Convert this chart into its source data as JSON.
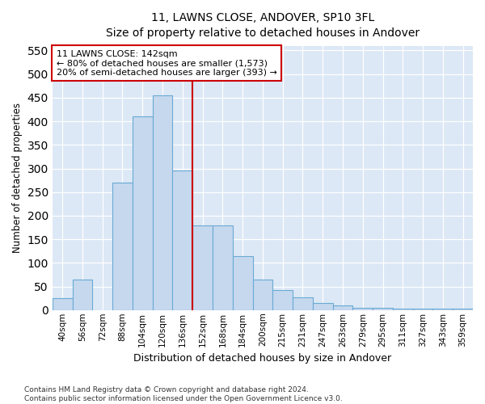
{
  "title": "11, LAWNS CLOSE, ANDOVER, SP10 3FL",
  "subtitle": "Size of property relative to detached houses in Andover",
  "xlabel": "Distribution of detached houses by size in Andover",
  "ylabel": "Number of detached properties",
  "categories": [
    "40sqm",
    "56sqm",
    "72sqm",
    "88sqm",
    "104sqm",
    "120sqm",
    "136sqm",
    "152sqm",
    "168sqm",
    "184sqm",
    "200sqm",
    "215sqm",
    "231sqm",
    "247sqm",
    "263sqm",
    "279sqm",
    "295sqm",
    "311sqm",
    "327sqm",
    "343sqm",
    "359sqm"
  ],
  "values": [
    25,
    65,
    0,
    270,
    410,
    455,
    295,
    180,
    180,
    115,
    65,
    43,
    27,
    15,
    10,
    5,
    5,
    3,
    3,
    3,
    3
  ],
  "bar_color": "#c5d8ee",
  "bar_edge_color": "#6aaad4",
  "vline_color": "#cc0000",
  "annotation_text": "11 LAWNS CLOSE: 142sqm\n← 80% of detached houses are smaller (1,573)\n20% of semi-detached houses are larger (393) →",
  "annotation_box_color": "#ffffff",
  "annotation_box_edge": "#cc0000",
  "ylim": [
    0,
    560
  ],
  "yticks": [
    0,
    50,
    100,
    150,
    200,
    250,
    300,
    350,
    400,
    450,
    500,
    550
  ],
  "fig_bg_color": "#ffffff",
  "plot_bg_color": "#dce8f5",
  "footer_line1": "Contains HM Land Registry data © Crown copyright and database right 2024.",
  "footer_line2": "Contains public sector information licensed under the Open Government Licence v3.0."
}
